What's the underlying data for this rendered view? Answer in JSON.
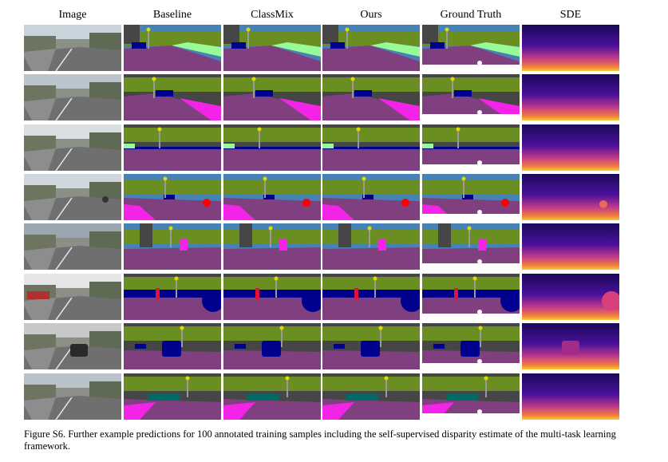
{
  "figure": {
    "columns": [
      "Image",
      "Baseline",
      "ClassMix",
      "Ours",
      "Ground Truth",
      "SDE"
    ],
    "caption": "Figure S6. Further example predictions for 100 annotated training samples including the self-supervised disparity estimate of the multi-task learning framework."
  },
  "colors": {
    "road": "#804080",
    "sidewalk": "#f423e8",
    "building": "#464646",
    "vegetation": "#6b8e23",
    "sky": "#4682b4",
    "car": "#00008e",
    "person": "#dc143c",
    "rider": "#ff0000",
    "pole": "#999999",
    "traffic_sign": "#dcdc00",
    "terrain": "#98fb98",
    "ignore": "#ffffff"
  }
}
